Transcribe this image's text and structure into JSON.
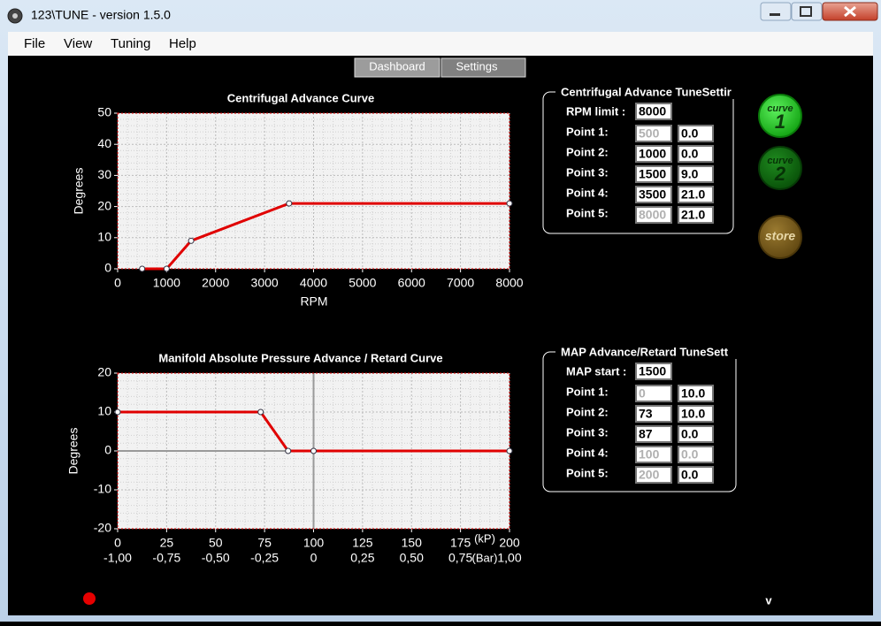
{
  "window": {
    "title": "123\\TUNE - version 1.5.0"
  },
  "menu": [
    "File",
    "View",
    "Tuning",
    "Help"
  ],
  "tabs": [
    "Dashboard",
    "Settings"
  ],
  "chart_data": [
    {
      "type": "line",
      "title": "Centrifugal Advance Curve",
      "x_label": "RPM",
      "y_label": "Degrees",
      "x": [
        500,
        1000,
        1500,
        3500,
        8000
      ],
      "values": [
        0,
        0,
        9,
        21,
        21
      ],
      "color": "#e00000",
      "xlim": [
        0,
        8000
      ],
      "xticks": [
        0,
        1000,
        2000,
        3000,
        4000,
        5000,
        6000,
        7000,
        8000
      ],
      "ylim": [
        0,
        50
      ],
      "yticks": [
        0,
        10,
        20,
        30,
        40,
        50
      ],
      "grid": true
    },
    {
      "type": "line",
      "title": "Manifold Absolute Pressure Advance / Retard Curve",
      "y_label": "Degrees",
      "x": [
        0,
        73,
        87,
        100,
        200
      ],
      "values": [
        10,
        10,
        0,
        0,
        0
      ],
      "color": "#e00000",
      "xlim": [
        0,
        200
      ],
      "xticks": [
        0,
        25,
        50,
        75,
        100,
        125,
        150,
        175,
        200
      ],
      "x_unit": "(kP)",
      "x2lim": [
        -1,
        1
      ],
      "x2ticks": [
        {
          "value": -1,
          "label": "-1,00"
        },
        {
          "value": -0.75,
          "label": "-0,75"
        },
        {
          "value": -0.5,
          "label": "-0,50"
        },
        {
          "value": -0.25,
          "label": "-0,25"
        },
        0,
        {
          "value": 0.25,
          "label": "0,25"
        },
        {
          "value": 0.5,
          "label": "0,50"
        },
        {
          "value": 0.75,
          "label": "0,75"
        },
        {
          "value": 1,
          "label": "1,00"
        }
      ],
      "x2_unit": "(Bar)",
      "ylim": [
        -20,
        20
      ],
      "yticks": [
        -20,
        -10,
        0,
        10,
        20
      ],
      "grid": true,
      "ref_lines": {
        "x": 100,
        "y": 0
      }
    }
  ],
  "panels": [
    {
      "title": "Centrifugal Advance TuneSettir",
      "rows": [
        {
          "label": "RPM limit :",
          "fields": [
            {
              "text": "8000",
              "disabled": false
            }
          ]
        },
        {
          "label": "Point 1:",
          "fields": [
            {
              "text": "500",
              "disabled": true
            },
            {
              "text": "0.0",
              "disabled": false
            }
          ]
        },
        {
          "label": "Point 2:",
          "fields": [
            {
              "text": "1000",
              "disabled": false
            },
            {
              "text": "0.0",
              "disabled": false
            }
          ]
        },
        {
          "label": "Point 3:",
          "fields": [
            {
              "text": "1500",
              "disabled": false
            },
            {
              "text": "9.0",
              "disabled": false
            }
          ]
        },
        {
          "label": "Point 4:",
          "fields": [
            {
              "text": "3500",
              "disabled": false
            },
            {
              "text": "21.0",
              "disabled": false
            }
          ]
        },
        {
          "label": "Point 5:",
          "fields": [
            {
              "text": "8000",
              "disabled": true
            },
            {
              "text": "21.0",
              "disabled": false
            }
          ]
        }
      ]
    },
    {
      "title": "MAP Advance/Retard TuneSett",
      "rows": [
        {
          "label": "MAP start :",
          "fields": [
            {
              "text": "1500",
              "disabled": false
            }
          ]
        },
        {
          "label": "Point 1:",
          "fields": [
            {
              "text": "0",
              "disabled": true
            },
            {
              "text": "10.0",
              "disabled": false
            }
          ]
        },
        {
          "label": "Point 2:",
          "fields": [
            {
              "text": "73",
              "disabled": false
            },
            {
              "text": "10.0",
              "disabled": false
            }
          ]
        },
        {
          "label": "Point 3:",
          "fields": [
            {
              "text": "87",
              "disabled": false
            },
            {
              "text": "0.0",
              "disabled": false
            }
          ]
        },
        {
          "label": "Point 4:",
          "fields": [
            {
              "text": "100",
              "disabled": true
            },
            {
              "text": "0.0",
              "disabled": true
            }
          ]
        },
        {
          "label": "Point 5:",
          "fields": [
            {
              "text": "200",
              "disabled": true
            },
            {
              "text": "0.0",
              "disabled": false
            }
          ]
        }
      ]
    }
  ],
  "buttons": [
    {
      "word": "curve",
      "number": "1"
    },
    {
      "word": "curve",
      "number": "2"
    },
    {
      "word": "store"
    }
  ],
  "footer": {
    "version_mark": "v"
  }
}
